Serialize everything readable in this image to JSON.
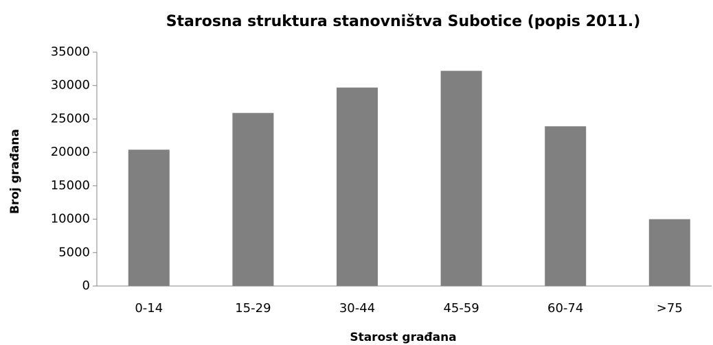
{
  "chart_data": {
    "type": "bar",
    "title": "Starosna struktura stanovništva Subotice (popis 2011.)",
    "x_label": "Starost građana",
    "y_label": "Broj građana",
    "categories": [
      "0-14",
      "15-29",
      "30-44",
      "45-59",
      "60-74",
      ">75"
    ],
    "values": [
      20400,
      25900,
      29700,
      32200,
      23900,
      10000
    ],
    "color": "#808080",
    "ylim": [
      0,
      35000
    ],
    "yticks": [
      0,
      5000,
      10000,
      15000,
      20000,
      25000,
      30000,
      35000
    ],
    "grid": false
  }
}
